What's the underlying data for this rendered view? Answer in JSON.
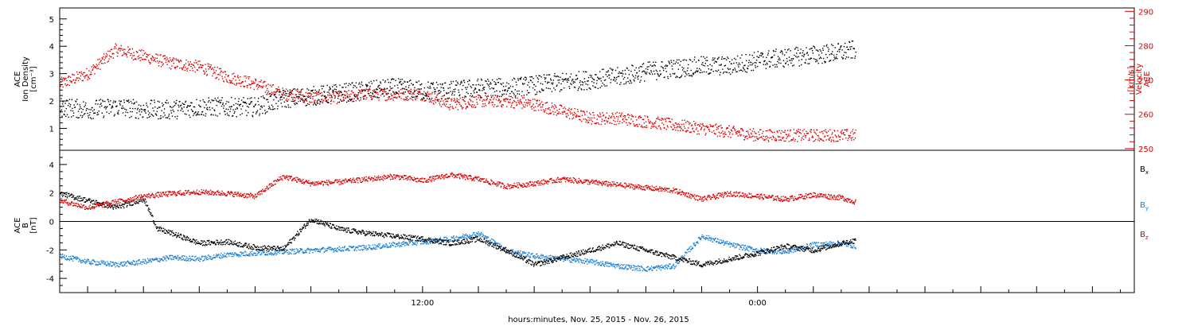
{
  "chart_data": [
    {
      "type": "scatter",
      "panel": "top",
      "xlabel": "hours:minutes, Nov. 25, 2015 - Nov. 26, 2015",
      "x_tick_labels": [
        {
          "hour": 12,
          "label": "12:00"
        },
        {
          "hour": 24,
          "label": "0:00"
        }
      ],
      "x_range_hours": [
        -1,
        37.5
      ],
      "y_left": {
        "label_lines": [
          "ACE",
          "Ion Density",
          "[cm⁻³]"
        ],
        "range": [
          0.2,
          5.4
        ],
        "ticks": [
          "1",
          "2",
          "3",
          "4",
          "5"
        ],
        "color": "#000000"
      },
      "y_right": {
        "label_lines": [
          "ACE",
          "Velocity",
          "[km/s]"
        ],
        "range": [
          249.5,
          291
        ],
        "ticks": [
          "250",
          "260",
          "270",
          "280",
          "290"
        ],
        "color": "#dd0000"
      },
      "series": [
        {
          "axis": "left",
          "color": "#000000",
          "points": [
            [
              -1,
              1.8
            ],
            [
              0,
              1.7
            ],
            [
              1,
              1.8
            ],
            [
              2,
              1.7
            ],
            [
              3,
              1.7
            ],
            [
              4,
              1.8
            ],
            [
              5,
              1.8
            ],
            [
              6,
              1.8
            ],
            [
              7,
              2.1
            ],
            [
              8,
              2.2
            ],
            [
              9,
              2.3
            ],
            [
              10,
              2.4
            ],
            [
              11,
              2.5
            ],
            [
              12,
              2.4
            ],
            [
              13,
              2.4
            ],
            [
              14,
              2.5
            ],
            [
              15,
              2.5
            ],
            [
              16,
              2.6
            ],
            [
              17,
              2.7
            ],
            [
              18,
              2.8
            ],
            [
              19,
              2.9
            ],
            [
              20,
              3.1
            ],
            [
              21,
              3.2
            ],
            [
              22,
              3.3
            ],
            [
              23,
              3.3
            ],
            [
              24,
              3.5
            ],
            [
              25,
              3.6
            ],
            [
              26,
              3.7
            ],
            [
              27,
              3.8
            ],
            [
              27.5,
              3.9
            ]
          ]
        },
        {
          "axis": "right",
          "color": "#dd0000",
          "points": [
            [
              -1,
              269
            ],
            [
              0,
              272
            ],
            [
              1,
              279
            ],
            [
              2,
              277
            ],
            [
              3,
              275
            ],
            [
              4,
              274
            ],
            [
              5,
              271
            ],
            [
              6,
              269
            ],
            [
              7,
              266
            ],
            [
              8,
              265
            ],
            [
              9,
              265
            ],
            [
              10,
              266
            ],
            [
              11,
              266
            ],
            [
              12,
              266
            ],
            [
              13,
              263
            ],
            [
              14,
              264
            ],
            [
              15,
              264
            ],
            [
              16,
              263
            ],
            [
              17,
              261
            ],
            [
              18,
              259
            ],
            [
              19,
              259
            ],
            [
              20,
              258
            ],
            [
              21,
              257
            ],
            [
              22,
              256
            ],
            [
              23,
              255
            ],
            [
              24,
              254
            ],
            [
              25,
              254
            ],
            [
              26,
              254
            ],
            [
              27,
              254
            ],
            [
              27.5,
              254
            ]
          ]
        }
      ]
    },
    {
      "type": "scatter",
      "panel": "bottom",
      "y": {
        "label_lines": [
          "ACE",
          "B",
          "[nT]"
        ],
        "range": [
          -5,
          5
        ],
        "ticks": [
          "-4",
          "-2",
          "0",
          "2",
          "4"
        ]
      },
      "legend": [
        {
          "label": "B",
          "sub": "x",
          "color": "#000000"
        },
        {
          "label": "B",
          "sub": "y",
          "color": "#1a7fd4"
        },
        {
          "label": "B",
          "sub": "z",
          "color": "#dd0000"
        }
      ],
      "series": [
        {
          "name": "Bx",
          "color": "#000000",
          "points": [
            [
              -1,
              2.0
            ],
            [
              0,
              1.5
            ],
            [
              1,
              1.0
            ],
            [
              2,
              1.6
            ],
            [
              2.5,
              -0.5
            ],
            [
              3,
              -0.8
            ],
            [
              4,
              -1.5
            ],
            [
              5,
              -1.4
            ],
            [
              6,
              -1.8
            ],
            [
              7,
              -1.9
            ],
            [
              8,
              0.2
            ],
            [
              9,
              -0.5
            ],
            [
              10,
              -0.8
            ],
            [
              11,
              -1.0
            ],
            [
              12,
              -1.2
            ],
            [
              13,
              -1.5
            ],
            [
              14,
              -1.2
            ],
            [
              15,
              -2.0
            ],
            [
              16,
              -3.0
            ],
            [
              17,
              -2.5
            ],
            [
              18,
              -2.0
            ],
            [
              19,
              -1.5
            ],
            [
              20,
              -2.0
            ],
            [
              21,
              -2.5
            ],
            [
              22,
              -3.0
            ],
            [
              23,
              -2.6
            ],
            [
              24,
              -2.2
            ],
            [
              25,
              -1.7
            ],
            [
              26,
              -2.0
            ],
            [
              27,
              -1.5
            ],
            [
              27.5,
              -1.3
            ]
          ]
        },
        {
          "name": "By",
          "color": "#1a7fd4",
          "points": [
            [
              -1,
              -2.4
            ],
            [
              0,
              -2.8
            ],
            [
              1,
              -3.0
            ],
            [
              2,
              -2.8
            ],
            [
              3,
              -2.5
            ],
            [
              4,
              -2.6
            ],
            [
              5,
              -2.3
            ],
            [
              6,
              -2.2
            ],
            [
              7,
              -2.1
            ],
            [
              8,
              -2.0
            ],
            [
              9,
              -1.9
            ],
            [
              10,
              -1.8
            ],
            [
              11,
              -1.6
            ],
            [
              12,
              -1.4
            ],
            [
              13,
              -1.2
            ],
            [
              14,
              -0.8
            ],
            [
              15,
              -2.0
            ],
            [
              16,
              -2.4
            ],
            [
              17,
              -2.6
            ],
            [
              18,
              -2.8
            ],
            [
              19,
              -3.1
            ],
            [
              20,
              -3.3
            ],
            [
              21,
              -3.1
            ],
            [
              22,
              -1.0
            ],
            [
              23,
              -1.6
            ],
            [
              24,
              -2.0
            ],
            [
              25,
              -2.1
            ],
            [
              26,
              -1.6
            ],
            [
              27,
              -1.5
            ],
            [
              27.5,
              -1.7
            ]
          ]
        },
        {
          "name": "Bz",
          "color": "#dd0000",
          "points": [
            [
              -1,
              1.5
            ],
            [
              0,
              1.0
            ],
            [
              1,
              1.4
            ],
            [
              2,
              1.8
            ],
            [
              3,
              2.0
            ],
            [
              4,
              2.1
            ],
            [
              5,
              2.0
            ],
            [
              6,
              1.8
            ],
            [
              7,
              3.2
            ],
            [
              8,
              2.7
            ],
            [
              9,
              2.8
            ],
            [
              10,
              3.0
            ],
            [
              11,
              3.2
            ],
            [
              12,
              2.9
            ],
            [
              13,
              3.3
            ],
            [
              14,
              3.0
            ],
            [
              15,
              2.5
            ],
            [
              16,
              2.7
            ],
            [
              17,
              3.0
            ],
            [
              18,
              2.8
            ],
            [
              19,
              2.6
            ],
            [
              20,
              2.4
            ],
            [
              21,
              2.2
            ],
            [
              22,
              1.6
            ],
            [
              23,
              2.0
            ],
            [
              24,
              1.8
            ],
            [
              25,
              1.6
            ],
            [
              26,
              1.9
            ],
            [
              27,
              1.7
            ],
            [
              27.5,
              1.4
            ]
          ]
        }
      ]
    }
  ]
}
